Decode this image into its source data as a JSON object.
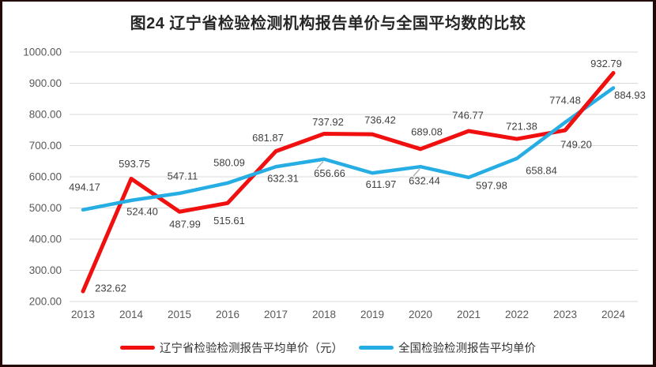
{
  "page": {
    "frame_border_color": "#240808",
    "background_color": "#ffffff"
  },
  "chart_data": {
    "type": "line",
    "title": "图24 辽宁省检验检测机构报告单价与全国平均数的比较",
    "xlabel": "",
    "ylabel": "",
    "categories": [
      "2013",
      "2014",
      "2015",
      "2016",
      "2017",
      "2018",
      "2019",
      "2020",
      "2021",
      "2022",
      "2023",
      "2024"
    ],
    "series": [
      {
        "name": "辽宁省检验检测报告平均单价（元）",
        "color": "#f01010",
        "stroke_width": 5,
        "values": [
          232.62,
          593.75,
          487.99,
          515.61,
          681.87,
          737.92,
          736.42,
          689.08,
          746.77,
          721.38,
          749.2,
          932.79
        ],
        "label_offsets": [
          [
            35,
            -4
          ],
          [
            4,
            -19
          ],
          [
            7,
            16
          ],
          [
            2,
            22
          ],
          [
            -10,
            -17
          ],
          [
            5,
            -15
          ],
          [
            10,
            -18
          ],
          [
            8,
            -22
          ],
          [
            -1,
            -20
          ],
          [
            6,
            -16
          ],
          [
            14,
            18
          ],
          [
            -9,
            -12
          ]
        ],
        "leader_line_indices": []
      },
      {
        "name": "全国检验检测报告平均单价",
        "color": "#25ade4",
        "stroke_width": 4.5,
        "values": [
          494.17,
          524.4,
          547.11,
          580.09,
          632.31,
          656.66,
          611.97,
          632.44,
          597.98,
          658.84,
          774.48,
          884.93
        ],
        "label_offsets": [
          [
            2,
            -29
          ],
          [
            14,
            14
          ],
          [
            4,
            -22
          ],
          [
            2,
            -26
          ],
          [
            9,
            15
          ],
          [
            7,
            18
          ],
          [
            11,
            14
          ],
          [
            5,
            18
          ],
          [
            29,
            10
          ],
          [
            31,
            15
          ],
          [
            0,
            -28
          ],
          [
            21,
            9
          ]
        ],
        "leader_line_indices": [
          5,
          7
        ]
      }
    ],
    "ylim": [
      200,
      1000
    ],
    "ytick_step": 100,
    "ytick_labels": [
      "200.00",
      "300.00",
      "400.00",
      "500.00",
      "600.00",
      "700.00",
      "800.00",
      "900.00",
      "1000.00"
    ],
    "grid": true,
    "gridline_color": "#d9d9d9",
    "leader_line_color": "#a6a6a6",
    "axis_label_color": "#595959",
    "data_label_color": "#404040",
    "legend_position": "bottom"
  }
}
